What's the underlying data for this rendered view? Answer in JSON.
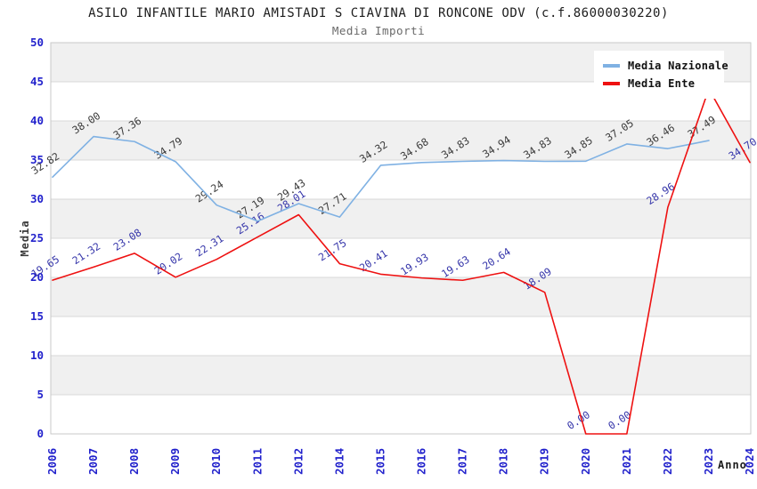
{
  "window": {
    "title": "ASILO INFANTILE MARIO AMISTADI S CIAVINA DI RONCONE ODV (c.f.86000030220)",
    "subtitle": "Media Importi"
  },
  "chart_data": {
    "type": "line",
    "title": "ASILO INFANTILE MARIO AMISTADI S CIAVINA DI RONCONE ODV (c.f.86000030220)",
    "subtitle": "Media Importi",
    "xlabel": "Anno",
    "ylabel": "Media",
    "ylim": [
      0,
      50
    ],
    "ytick_step": 5,
    "legend_position": "top-right",
    "grid": "horizontal-bands",
    "categories": [
      "2006",
      "2007",
      "2008",
      "2009",
      "2010",
      "2011",
      "2012",
      "2014",
      "2015",
      "2016",
      "2017",
      "2018",
      "2019",
      "2020",
      "2021",
      "2022",
      "2023",
      "2024"
    ],
    "series": [
      {
        "name": "Media Nazionale",
        "color": "#7fb1e3",
        "label_color": "#3b3b3b",
        "values": [
          32.82,
          38.0,
          37.36,
          34.79,
          29.24,
          27.19,
          29.43,
          27.71,
          34.32,
          34.68,
          34.83,
          34.94,
          34.83,
          34.85,
          37.05,
          36.46,
          37.49,
          null
        ],
        "hidden_label_indexes": []
      },
      {
        "name": "Media Ente",
        "color": "#ee1111",
        "label_color": "#3636aa",
        "values": [
          19.65,
          21.32,
          23.08,
          20.02,
          22.31,
          25.16,
          28.01,
          21.75,
          20.41,
          19.93,
          19.63,
          20.64,
          18.09,
          0.0,
          0.0,
          28.96,
          44.1,
          34.7
        ],
        "hidden_label_indexes": [
          16
        ]
      }
    ],
    "colors": {
      "tick_label": "#2222cc",
      "grid_line": "#d9d9d9",
      "plot_border": "#c9c9c9",
      "band_alt": "#f0f0f0",
      "band_main": "#ffffff"
    }
  }
}
